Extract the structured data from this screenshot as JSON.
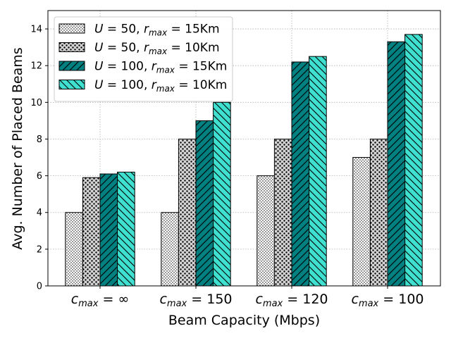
{
  "chart_data": {
    "type": "bar",
    "title": "",
    "xlabel": "Beam Capacity (Mbps)",
    "ylabel": "Avg. Number of Placed Beams",
    "ylim": [
      0,
      15
    ],
    "yticks": [
      0,
      2,
      4,
      6,
      8,
      10,
      12,
      14
    ],
    "grid": true,
    "legend_position": "top-left",
    "categories": [
      "c_max = ∞",
      "c_max = 150",
      "c_max = 120",
      "c_max = 100"
    ],
    "series": [
      {
        "name": "U = 50, r_max = 15Km",
        "values": [
          4.0,
          4.0,
          6.0,
          7.0
        ],
        "color": "#ffffff",
        "hatch": "dots"
      },
      {
        "name": "U = 50, r_max = 10Km",
        "values": [
          5.9,
          8.0,
          8.0,
          8.0
        ],
        "color": "#d3d3d3",
        "hatch": "circles"
      },
      {
        "name": "U = 100, r_max = 15Km",
        "values": [
          6.1,
          9.0,
          12.2,
          13.3
        ],
        "color": "#008080",
        "hatch": "diagonal"
      },
      {
        "name": "U = 100, r_max = 10Km",
        "values": [
          6.2,
          10.0,
          12.5,
          13.7
        ],
        "color": "#40e0d0",
        "hatch": "back-diagonal"
      }
    ]
  },
  "legend_entries": [
    {
      "U": "50",
      "r": "15Km"
    },
    {
      "U": "50",
      "r": "10Km"
    },
    {
      "U": "100",
      "r": "15Km"
    },
    {
      "U": "100",
      "r": "10Km"
    }
  ],
  "category_labels": [
    {
      "base": "c",
      "sub": "max",
      "rest": " = ∞"
    },
    {
      "base": "c",
      "sub": "max",
      "rest": " = 150"
    },
    {
      "base": "c",
      "sub": "max",
      "rest": " = 120"
    },
    {
      "base": "c",
      "sub": "max",
      "rest": " = 100"
    }
  ]
}
